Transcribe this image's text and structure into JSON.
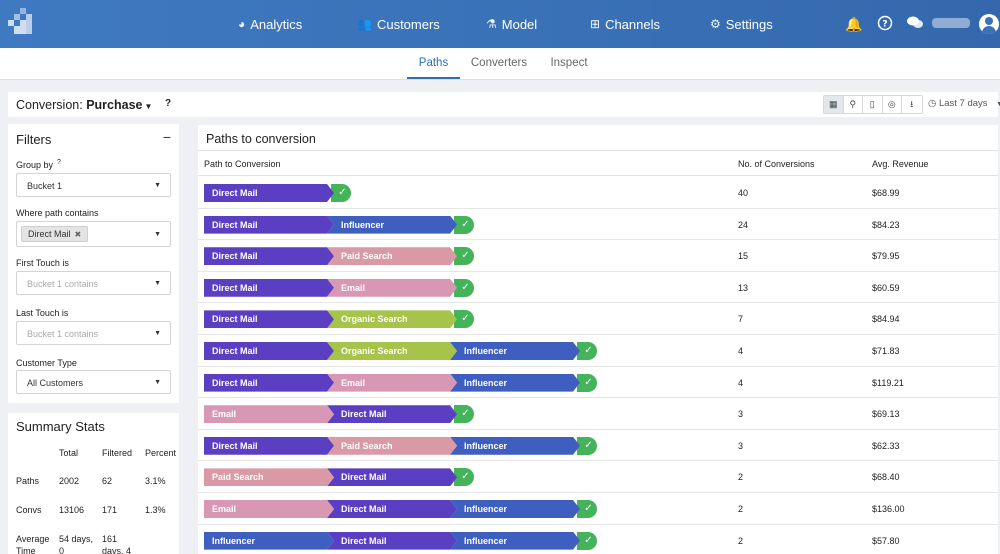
{
  "nav": {
    "items": [
      {
        "label": "Analytics",
        "icon": "pie-chart-icon"
      },
      {
        "label": "Customers",
        "icon": "users-icon"
      },
      {
        "label": "Model",
        "icon": "flask-icon"
      },
      {
        "label": "Channels",
        "icon": "sitemap-icon"
      },
      {
        "label": "Settings",
        "icon": "gears-icon"
      }
    ],
    "active": "Customers"
  },
  "subtabs": [
    "Paths",
    "Converters",
    "Inspect"
  ],
  "conversion": {
    "label": "Conversion:",
    "value": "Purchase",
    "help": "?",
    "date_range": "Last 7 days"
  },
  "filters": {
    "title": "Filters",
    "collapse": "−",
    "group_by": {
      "label": "Group by",
      "help": "?",
      "value": "Bucket 1"
    },
    "where_path": {
      "label": "Where path contains",
      "chip": "Direct Mail"
    },
    "first_touch": {
      "label": "First Touch is",
      "placeholder": "Bucket 1 contains"
    },
    "last_touch": {
      "label": "Last Touch is",
      "placeholder": "Bucket 1 contains"
    },
    "customer_type": {
      "label": "Customer Type",
      "value": "All Customers"
    }
  },
  "summary": {
    "title": "Summary Stats",
    "headers": [
      "Total",
      "Filtered",
      "Percent"
    ],
    "rows": [
      {
        "label": "Paths",
        "total": "2002",
        "filtered": "62",
        "percent": "3.1%"
      },
      {
        "label": "Convs",
        "total": "13106",
        "filtered": "171",
        "percent": "1.3%"
      },
      {
        "label": "Average Time",
        "total": "54 days, 0",
        "filtered": "161 days, 4",
        "percent": ""
      }
    ]
  },
  "table": {
    "title": "Paths to conversion",
    "columns": [
      "Path to Conversion",
      "No. of Conversions",
      "Avg. Revenue"
    ],
    "rows": [
      {
        "path": [
          "Direct Mail"
        ],
        "conversions": "40",
        "revenue": "$68.99"
      },
      {
        "path": [
          "Direct Mail",
          "Influencer"
        ],
        "conversions": "24",
        "revenue": "$84.23"
      },
      {
        "path": [
          "Direct Mail",
          "Paid Search"
        ],
        "conversions": "15",
        "revenue": "$79.95"
      },
      {
        "path": [
          "Direct Mail",
          "Email"
        ],
        "conversions": "13",
        "revenue": "$60.59"
      },
      {
        "path": [
          "Direct Mail",
          "Organic Search"
        ],
        "conversions": "7",
        "revenue": "$84.94"
      },
      {
        "path": [
          "Direct Mail",
          "Organic Search",
          "Influencer"
        ],
        "conversions": "4",
        "revenue": "$71.83"
      },
      {
        "path": [
          "Direct Mail",
          "Email",
          "Influencer"
        ],
        "conversions": "4",
        "revenue": "$119.21"
      },
      {
        "path": [
          "Email",
          "Direct Mail"
        ],
        "conversions": "3",
        "revenue": "$69.13"
      },
      {
        "path": [
          "Direct Mail",
          "Paid Search",
          "Influencer"
        ],
        "conversions": "3",
        "revenue": "$62.33"
      },
      {
        "path": [
          "Paid Search",
          "Direct Mail"
        ],
        "conversions": "2",
        "revenue": "$68.40"
      },
      {
        "path": [
          "Email",
          "Direct Mail",
          "Influencer"
        ],
        "conversions": "2",
        "revenue": "$136.00"
      },
      {
        "path": [
          "Influencer",
          "Direct Mail",
          "Influencer"
        ],
        "conversions": "2",
        "revenue": "$57.80"
      }
    ]
  },
  "channel_colors": {
    "Direct Mail": "#5b3fc2",
    "Influencer": "#3e5fc0",
    "Paid Search": "#d99aa6",
    "Email": "#d898b4",
    "Organic Search": "#a6c34a"
  }
}
